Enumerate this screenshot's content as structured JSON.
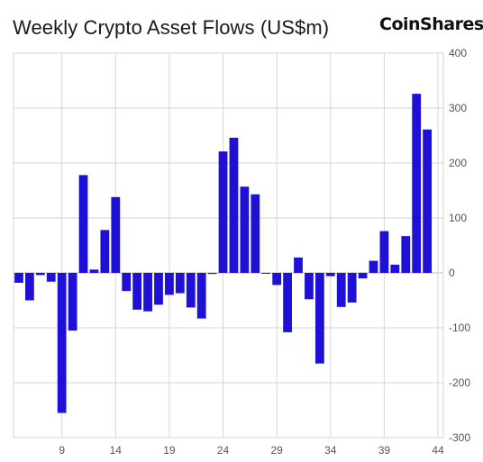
{
  "header": {
    "title": "Weekly Crypto Asset Flows (US$m)",
    "brand": "CoinShares"
  },
  "colors": {
    "bar": "#1f10d6",
    "grid": "#d6d6d6",
    "zero_line": "#bdbdbd",
    "text": "#555555"
  },
  "chart_data": {
    "type": "bar",
    "title": "Weekly Crypto Asset Flows (US$m)",
    "xlabel": "",
    "ylabel": "",
    "x": [
      5,
      6,
      7,
      8,
      9,
      10,
      11,
      12,
      13,
      14,
      15,
      16,
      17,
      18,
      19,
      20,
      21,
      22,
      23,
      24,
      25,
      26,
      27,
      28,
      29,
      30,
      31,
      32,
      33,
      34,
      35,
      36,
      37,
      38,
      39,
      40,
      41,
      42,
      43,
      44
    ],
    "values": [
      -18,
      -50,
      -4,
      -16,
      -255,
      -105,
      178,
      6,
      78,
      138,
      -33,
      -67,
      -70,
      -58,
      -40,
      -37,
      -63,
      -83,
      -2,
      221,
      246,
      157,
      143,
      -1,
      -22,
      -108,
      28,
      -48,
      -165,
      -6,
      -62,
      -54,
      -10,
      22,
      76,
      15,
      67,
      326,
      261,
      0
    ],
    "x_ticks": [
      "9",
      "14",
      "19",
      "24",
      "29",
      "34",
      "39",
      "44"
    ],
    "x_tick_values": [
      9,
      14,
      19,
      24,
      29,
      34,
      39,
      44
    ],
    "y_ticks": [
      "400",
      "300",
      "200",
      "100",
      "0",
      "-100",
      "-200",
      "-300"
    ],
    "y_tick_values": [
      400,
      300,
      200,
      100,
      0,
      -100,
      -200,
      -300
    ],
    "ylim": [
      -300,
      400
    ],
    "y_axis_side": "right",
    "grid": true
  }
}
